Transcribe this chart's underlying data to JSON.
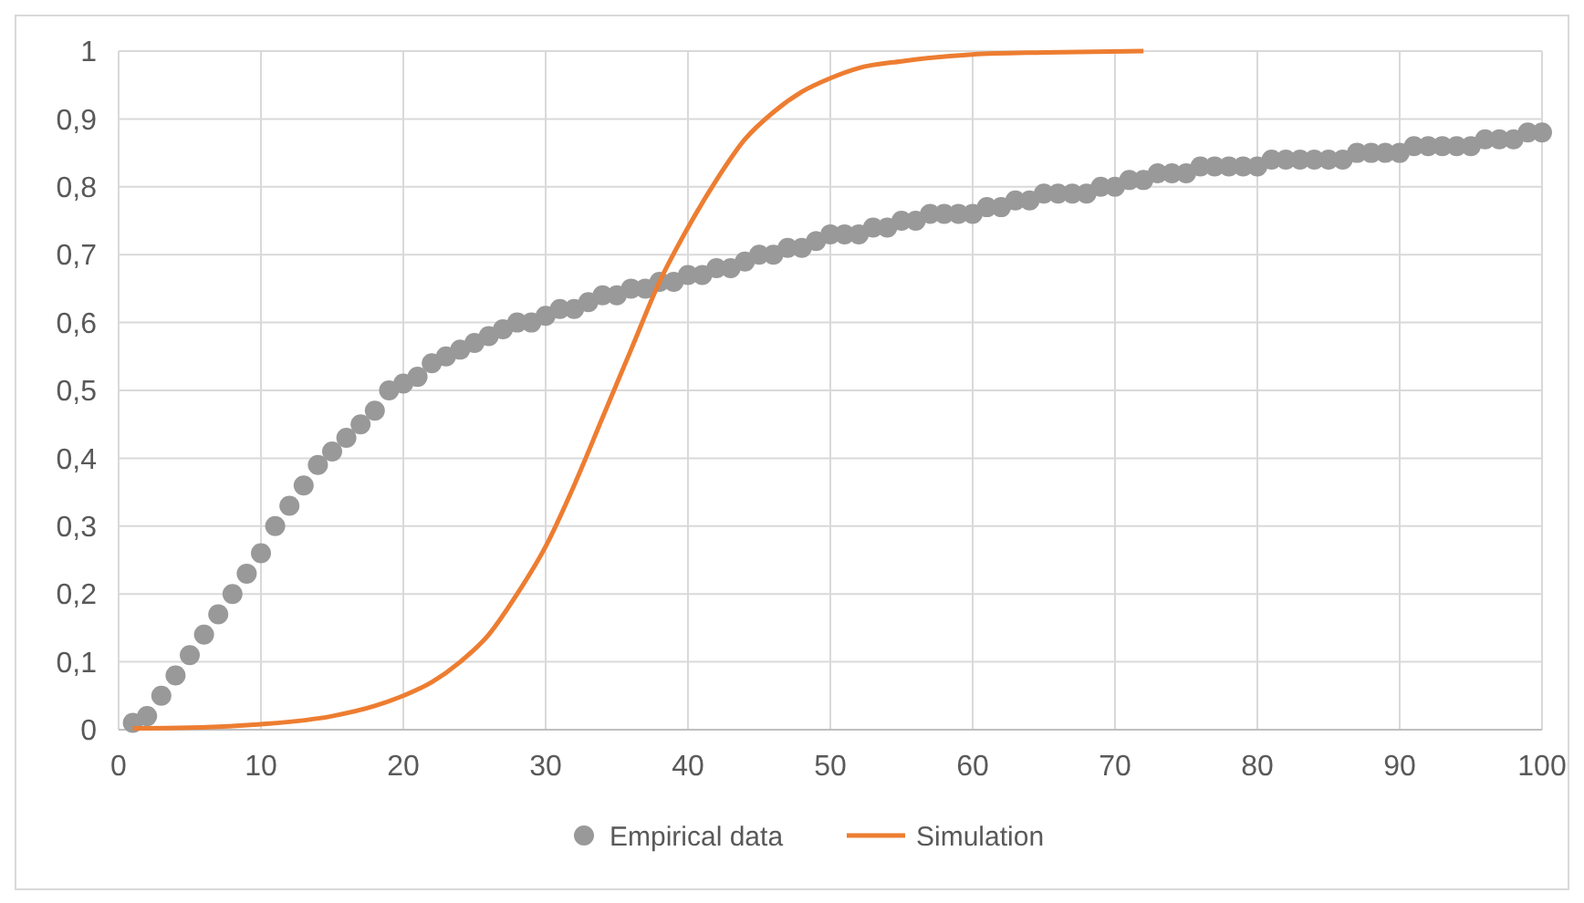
{
  "chart_data": {
    "type": "scatter",
    "xlim": [
      0,
      100
    ],
    "ylim": [
      0,
      1
    ],
    "xticks": [
      0,
      10,
      20,
      30,
      40,
      50,
      60,
      70,
      80,
      90,
      100
    ],
    "yticks": [
      0,
      {
        "value": 0.1,
        "label": "0,1"
      },
      {
        "value": 0.2,
        "label": "0,2"
      },
      {
        "value": 0.3,
        "label": "0,3"
      },
      {
        "value": 0.4,
        "label": "0,4"
      },
      {
        "value": 0.5,
        "label": "0,5"
      },
      {
        "value": 0.6,
        "label": "0,6"
      },
      {
        "value": 0.7,
        "label": "0,7"
      },
      {
        "value": 0.8,
        "label": "0,8"
      },
      {
        "value": 0.9,
        "label": "0,9"
      },
      1
    ],
    "grid": true,
    "legend": "bottom",
    "series": [
      {
        "name": "Empirical data",
        "marker": "circle",
        "color": "#999999",
        "x": [
          1,
          2,
          3,
          4,
          5,
          6,
          7,
          8,
          9,
          10,
          11,
          12,
          13,
          14,
          15,
          16,
          17,
          18,
          19,
          20,
          21,
          22,
          23,
          24,
          25,
          26,
          27,
          28,
          29,
          30,
          31,
          32,
          33,
          34,
          35,
          36,
          37,
          38,
          39,
          40,
          41,
          42,
          43,
          44,
          45,
          46,
          47,
          48,
          49,
          50,
          51,
          52,
          53,
          54,
          55,
          56,
          57,
          58,
          59,
          60,
          61,
          62,
          63,
          64,
          65,
          66,
          67,
          68,
          69,
          70,
          71,
          72,
          73,
          74,
          75,
          76,
          77,
          78,
          79,
          80,
          81,
          82,
          83,
          84,
          85,
          86,
          87,
          88,
          89,
          90,
          91,
          92,
          93,
          94,
          95,
          96,
          97,
          98,
          99,
          100
        ],
        "values": [
          0.01,
          0.02,
          0.05,
          0.08,
          0.11,
          0.14,
          0.17,
          0.2,
          0.23,
          0.26,
          0.3,
          0.33,
          0.36,
          0.39,
          0.41,
          0.43,
          0.45,
          0.47,
          0.5,
          0.51,
          0.52,
          0.54,
          0.55,
          0.56,
          0.57,
          0.58,
          0.59,
          0.6,
          0.6,
          0.61,
          0.62,
          0.62,
          0.63,
          0.64,
          0.64,
          0.65,
          0.65,
          0.66,
          0.66,
          0.67,
          0.67,
          0.68,
          0.68,
          0.69,
          0.7,
          0.7,
          0.71,
          0.71,
          0.72,
          0.73,
          0.73,
          0.73,
          0.74,
          0.74,
          0.75,
          0.75,
          0.76,
          0.76,
          0.76,
          0.76,
          0.77,
          0.77,
          0.78,
          0.78,
          0.79,
          0.79,
          0.79,
          0.79,
          0.8,
          0.8,
          0.81,
          0.81,
          0.82,
          0.82,
          0.82,
          0.83,
          0.83,
          0.83,
          0.83,
          0.83,
          0.84,
          0.84,
          0.84,
          0.84,
          0.84,
          0.84,
          0.85,
          0.85,
          0.85,
          0.85,
          0.86,
          0.86,
          0.86,
          0.86,
          0.86,
          0.87,
          0.87,
          0.87,
          0.88,
          0.88
        ]
      },
      {
        "name": "Simulation",
        "type": "line",
        "marker": "none",
        "line_style": "solid",
        "color": "#ed7d31",
        "x": [
          1,
          5,
          10,
          15,
          18,
          20,
          22,
          24,
          26,
          28,
          30,
          32,
          34,
          36,
          38,
          40,
          42,
          44,
          46,
          48,
          50,
          52,
          55,
          60,
          65,
          72
        ],
        "values": [
          0.002,
          0.003,
          0.008,
          0.02,
          0.035,
          0.05,
          0.07,
          0.1,
          0.14,
          0.2,
          0.27,
          0.36,
          0.46,
          0.56,
          0.66,
          0.74,
          0.81,
          0.87,
          0.91,
          0.94,
          0.96,
          0.975,
          0.985,
          0.995,
          0.998,
          1
        ]
      }
    ]
  }
}
